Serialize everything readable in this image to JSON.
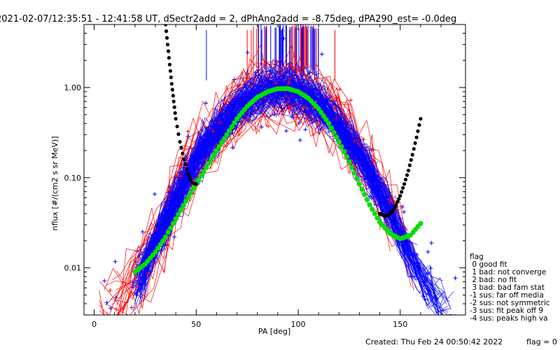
{
  "header": {
    "title": "2021-02-07/12:35:51 - 12:41:58 UT, dSectr2add = 2, dPhAng2add = -8.75deg, dPA290_est=  -0.0deg"
  },
  "footer": {
    "created": "Created: Thu Feb 24 00:50:42 2022",
    "flag": "flag = 0"
  },
  "legend": {
    "title": "flag",
    "items": [
      " 0 good fit",
      " 1 bad: not converge",
      " 2 bad: no fit",
      " 3 bad: bad fam stat",
      "-1 sus: far off media",
      "-2 sus: not symmetric",
      "-3 sus: fit peak off 9",
      "-4 sus: peaks high va"
    ]
  },
  "chart_data": {
    "type": "line",
    "title": "2021-02-07/12:35:51 - 12:41:58 UT, dSectr2add = 2, dPhAng2add = -8.75deg, dPA290_est=  -0.0deg",
    "xlabel": "PA [deg]",
    "ylabel": "nflux [#/(cm2 s sr MeV)]",
    "xlim": [
      -5,
      182
    ],
    "ylim": [
      0.003,
      5
    ],
    "yscale": "log",
    "x_ticks": [
      0,
      50,
      100,
      150
    ],
    "x_tick_labels": [
      "0",
      "50",
      "100",
      "150"
    ],
    "y_ticks": [
      0.01,
      0.1,
      1.0
    ],
    "y_tick_labels": [
      "0.01",
      "0.10",
      "1.00"
    ],
    "colors": {
      "blue": "#0000ff",
      "red": "#ff0000",
      "green": "#00e000",
      "black": "#000000"
    },
    "series": [
      {
        "color": "green",
        "marker": "dot",
        "x": [
          20,
          25,
          30,
          35,
          40,
          45,
          50,
          55,
          60,
          65,
          70,
          75,
          80,
          85,
          90,
          95,
          100,
          105,
          110,
          115,
          120,
          125,
          130,
          135,
          140,
          145,
          150,
          155,
          160
        ],
        "y": [
          0.009,
          0.011,
          0.015,
          0.022,
          0.035,
          0.055,
          0.085,
          0.13,
          0.2,
          0.3,
          0.45,
          0.62,
          0.78,
          0.9,
          0.97,
          0.97,
          0.9,
          0.76,
          0.58,
          0.4,
          0.25,
          0.15,
          0.085,
          0.05,
          0.032,
          0.024,
          0.021,
          0.023,
          0.031
        ]
      },
      {
        "color": "black",
        "marker": "dot",
        "x": [
          35,
          36,
          37,
          38,
          39,
          40,
          42,
          44,
          46,
          48,
          50
        ],
        "y": [
          5.0,
          3.0,
          1.8,
          1.1,
          0.7,
          0.45,
          0.25,
          0.16,
          0.11,
          0.088,
          0.085
        ]
      },
      {
        "color": "black",
        "marker": "dot",
        "x": [
          140,
          142,
          144,
          146,
          148,
          150,
          152,
          154,
          156,
          158,
          160
        ],
        "y": [
          0.04,
          0.038,
          0.038,
          0.042,
          0.05,
          0.063,
          0.085,
          0.12,
          0.18,
          0.28,
          0.45
        ]
      }
    ]
  }
}
